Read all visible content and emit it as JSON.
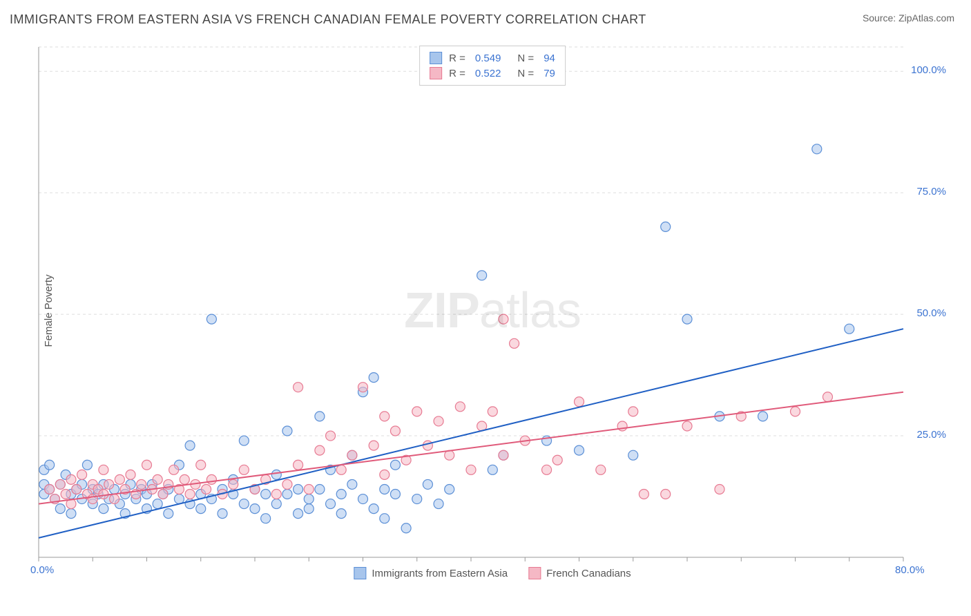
{
  "title": "IMMIGRANTS FROM EASTERN ASIA VS FRENCH CANADIAN FEMALE POVERTY CORRELATION CHART",
  "source": "Source: ZipAtlas.com",
  "watermark_a": "ZIP",
  "watermark_b": "atlas",
  "chart": {
    "type": "scatter",
    "ylabel": "Female Poverty",
    "xlim": [
      0,
      80
    ],
    "ylim": [
      0,
      105
    ],
    "x_ticks": [
      0,
      80
    ],
    "x_tick_labels": [
      "0.0%",
      "80.0%"
    ],
    "y_ticks": [
      25,
      50,
      75,
      100
    ],
    "y_tick_labels": [
      "25.0%",
      "50.0%",
      "75.0%",
      "100.0%"
    ],
    "x_minor_count": 16,
    "grid_color": "#dddddd",
    "axis_color": "#999999",
    "background_color": "#ffffff",
    "tick_label_color": "#3b73d1",
    "marker_radius": 7,
    "marker_stroke_width": 1.2,
    "trend_line_width": 2,
    "series": [
      {
        "name": "Immigrants from Eastern Asia",
        "fill": "#a7c5ec",
        "fill_opacity": 0.55,
        "stroke": "#5b8fd6",
        "line_color": "#1f5fc4",
        "R": "0.549",
        "N": "94",
        "trend": {
          "x1": 0,
          "y1": 4,
          "x2": 80,
          "y2": 47
        },
        "points": [
          [
            0.5,
            18
          ],
          [
            0.5,
            15
          ],
          [
            0.5,
            13
          ],
          [
            1,
            14
          ],
          [
            1,
            19
          ],
          [
            1.5,
            12
          ],
          [
            2,
            15
          ],
          [
            2,
            10
          ],
          [
            2.5,
            17
          ],
          [
            3,
            13
          ],
          [
            3,
            9
          ],
          [
            3.5,
            14
          ],
          [
            4,
            12
          ],
          [
            4,
            15
          ],
          [
            4.5,
            19
          ],
          [
            5,
            11
          ],
          [
            5,
            14
          ],
          [
            5.5,
            13
          ],
          [
            6,
            10
          ],
          [
            6,
            15
          ],
          [
            6.5,
            12
          ],
          [
            7,
            14
          ],
          [
            7.5,
            11
          ],
          [
            8,
            13
          ],
          [
            8,
            9
          ],
          [
            8.5,
            15
          ],
          [
            9,
            12
          ],
          [
            9.5,
            14
          ],
          [
            10,
            10
          ],
          [
            10,
            13
          ],
          [
            10.5,
            15
          ],
          [
            11,
            11
          ],
          [
            11.5,
            13
          ],
          [
            12,
            9
          ],
          [
            12,
            14
          ],
          [
            13,
            12
          ],
          [
            13,
            19
          ],
          [
            14,
            11
          ],
          [
            14,
            23
          ],
          [
            15,
            13
          ],
          [
            15,
            10
          ],
          [
            16,
            12
          ],
          [
            16,
            49
          ],
          [
            17,
            14
          ],
          [
            17,
            9
          ],
          [
            18,
            13
          ],
          [
            18,
            16
          ],
          [
            19,
            11
          ],
          [
            19,
            24
          ],
          [
            20,
            14
          ],
          [
            20,
            10
          ],
          [
            21,
            13
          ],
          [
            21,
            8
          ],
          [
            22,
            11
          ],
          [
            22,
            17
          ],
          [
            23,
            13
          ],
          [
            23,
            26
          ],
          [
            24,
            9
          ],
          [
            24,
            14
          ],
          [
            25,
            12
          ],
          [
            25,
            10
          ],
          [
            26,
            14
          ],
          [
            26,
            29
          ],
          [
            27,
            11
          ],
          [
            27,
            18
          ],
          [
            28,
            13
          ],
          [
            28,
            9
          ],
          [
            29,
            21
          ],
          [
            29,
            15
          ],
          [
            30,
            12
          ],
          [
            30,
            34
          ],
          [
            31,
            10
          ],
          [
            31,
            37
          ],
          [
            32,
            14
          ],
          [
            32,
            8
          ],
          [
            33,
            13
          ],
          [
            33,
            19
          ],
          [
            34,
            6
          ],
          [
            35,
            12
          ],
          [
            36,
            15
          ],
          [
            37,
            11
          ],
          [
            38,
            14
          ],
          [
            41,
            58
          ],
          [
            42,
            18
          ],
          [
            43,
            21
          ],
          [
            47,
            24
          ],
          [
            50,
            22
          ],
          [
            55,
            21
          ],
          [
            58,
            68
          ],
          [
            60,
            49
          ],
          [
            63,
            29
          ],
          [
            67,
            29
          ],
          [
            72,
            84
          ],
          [
            75,
            47
          ]
        ]
      },
      {
        "name": "French Canadians",
        "fill": "#f5b8c5",
        "fill_opacity": 0.55,
        "stroke": "#e77a92",
        "line_color": "#e05a7a",
        "R": "0.522",
        "N": "79",
        "trend": {
          "x1": 0,
          "y1": 11,
          "x2": 80,
          "y2": 34
        },
        "points": [
          [
            1,
            14
          ],
          [
            1.5,
            12
          ],
          [
            2,
            15
          ],
          [
            2.5,
            13
          ],
          [
            3,
            16
          ],
          [
            3,
            11
          ],
          [
            3.5,
            14
          ],
          [
            4,
            17
          ],
          [
            4.5,
            13
          ],
          [
            5,
            15
          ],
          [
            5,
            12
          ],
          [
            5.5,
            14
          ],
          [
            6,
            18
          ],
          [
            6,
            13
          ],
          [
            6.5,
            15
          ],
          [
            7,
            12
          ],
          [
            7.5,
            16
          ],
          [
            8,
            14
          ],
          [
            8.5,
            17
          ],
          [
            9,
            13
          ],
          [
            9.5,
            15
          ],
          [
            10,
            19
          ],
          [
            10.5,
            14
          ],
          [
            11,
            16
          ],
          [
            11.5,
            13
          ],
          [
            12,
            15
          ],
          [
            12.5,
            18
          ],
          [
            13,
            14
          ],
          [
            13.5,
            16
          ],
          [
            14,
            13
          ],
          [
            14.5,
            15
          ],
          [
            15,
            19
          ],
          [
            15.5,
            14
          ],
          [
            16,
            16
          ],
          [
            17,
            13
          ],
          [
            18,
            15
          ],
          [
            19,
            18
          ],
          [
            20,
            14
          ],
          [
            21,
            16
          ],
          [
            22,
            13
          ],
          [
            23,
            15
          ],
          [
            24,
            19
          ],
          [
            24,
            35
          ],
          [
            25,
            14
          ],
          [
            26,
            22
          ],
          [
            27,
            25
          ],
          [
            28,
            18
          ],
          [
            29,
            21
          ],
          [
            30,
            35
          ],
          [
            31,
            23
          ],
          [
            32,
            29
          ],
          [
            32,
            17
          ],
          [
            33,
            26
          ],
          [
            34,
            20
          ],
          [
            35,
            30
          ],
          [
            36,
            23
          ],
          [
            37,
            28
          ],
          [
            38,
            21
          ],
          [
            39,
            31
          ],
          [
            40,
            18
          ],
          [
            41,
            27
          ],
          [
            42,
            30
          ],
          [
            43,
            49
          ],
          [
            43,
            21
          ],
          [
            44,
            44
          ],
          [
            45,
            24
          ],
          [
            47,
            18
          ],
          [
            48,
            20
          ],
          [
            50,
            32
          ],
          [
            52,
            18
          ],
          [
            54,
            27
          ],
          [
            55,
            30
          ],
          [
            56,
            13
          ],
          [
            58,
            13
          ],
          [
            60,
            27
          ],
          [
            63,
            14
          ],
          [
            65,
            29
          ],
          [
            70,
            30
          ],
          [
            73,
            33
          ]
        ]
      }
    ],
    "legend_top": [
      {
        "swatch_fill": "#a7c5ec",
        "swatch_stroke": "#5b8fd6",
        "R": "0.549",
        "N": "94"
      },
      {
        "swatch_fill": "#f5b8c5",
        "swatch_stroke": "#e77a92",
        "R": "0.522",
        "N": "79"
      }
    ],
    "legend_bottom": [
      {
        "swatch_fill": "#a7c5ec",
        "swatch_stroke": "#5b8fd6",
        "label": "Immigrants from Eastern Asia"
      },
      {
        "swatch_fill": "#f5b8c5",
        "swatch_stroke": "#e77a92",
        "label": "French Canadians"
      }
    ]
  }
}
